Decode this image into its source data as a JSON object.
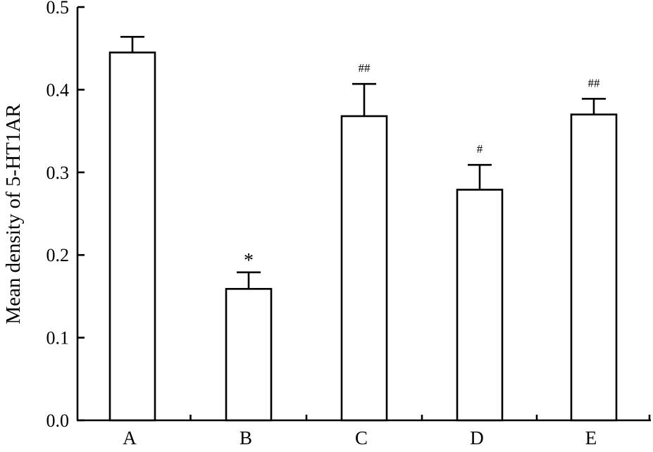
{
  "chart_data": {
    "type": "bar",
    "title": "",
    "xlabel": "",
    "ylabel": "Mean density of 5-HT1AR",
    "ylim": [
      0,
      0.5
    ],
    "yticks": [
      "0.0",
      "0.1",
      "0.2",
      "0.3",
      "0.4",
      "0.5"
    ],
    "categories": [
      "A",
      "B",
      "C",
      "D",
      "E"
    ],
    "values": [
      0.445,
      0.159,
      0.368,
      0.279,
      0.37
    ],
    "errors": [
      0.019,
      0.02,
      0.039,
      0.03,
      0.019
    ],
    "annotations": [
      "",
      "*",
      "##",
      "#",
      "##"
    ],
    "grid": false,
    "legend": "none",
    "colors": {
      "bar_fill": "#ffffff",
      "stroke": "#000000"
    }
  }
}
